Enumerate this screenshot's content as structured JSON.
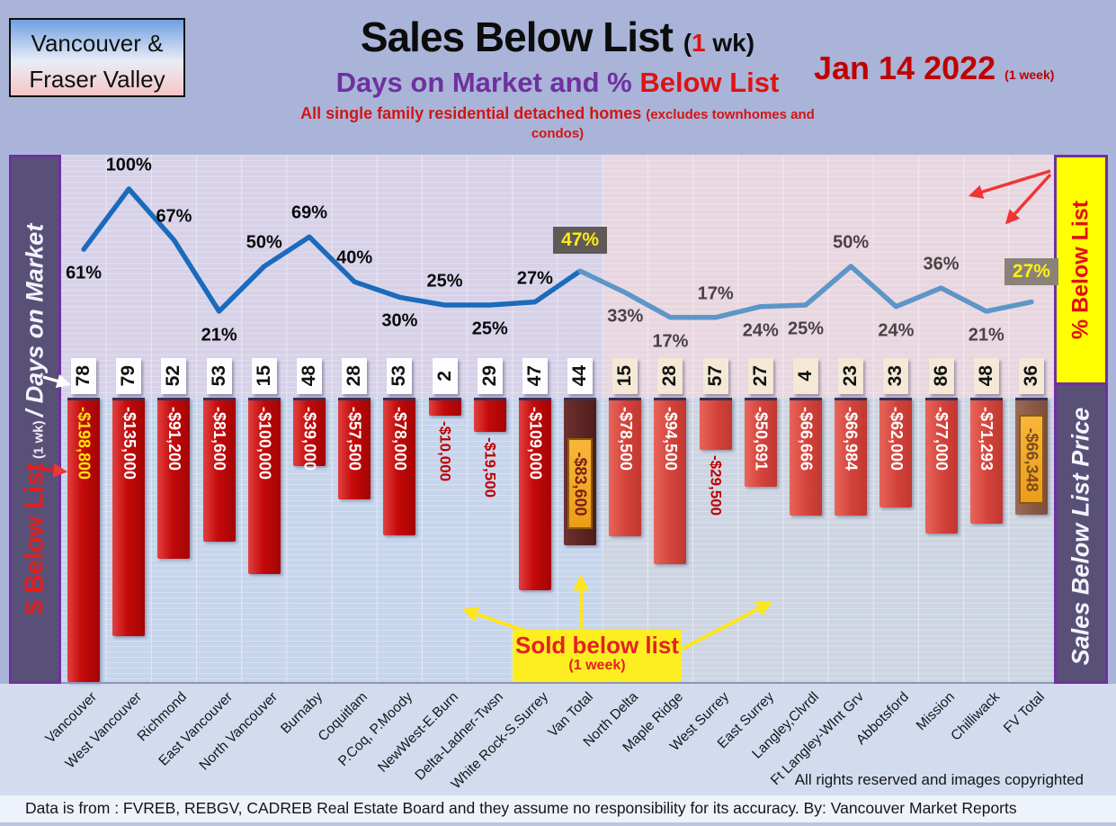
{
  "header": {
    "logo_line1": "Vancouver &",
    "logo_line2": "Fraser Valley",
    "title_black": "Sales Below List ",
    "title_paren_pre": "(",
    "title_paren_num": "1",
    "title_paren_post": " wk)",
    "subtitle_purple": "Days on Market and % ",
    "subtitle_red": "Below List",
    "tagline_main": "All single family residential detached homes ",
    "tagline_paren": "(excludes townhomes and condos)",
    "date_text": "Jan 14  2022 ",
    "date_paren": "(1 week)"
  },
  "sidebars": {
    "left_red": "$ Below List",
    "left_small": " (1 wk) ",
    "left_white": "/ Days on Market",
    "right_yellow_label": "% Below List",
    "right_white": "Sales Below List Price"
  },
  "callout": {
    "line1": "Sold below list",
    "line2": "(1 week)"
  },
  "footer": {
    "rights": "All rights reserved and  images copyrighted",
    "source": "Data is from : FVREB, REBGV, CADREB Real Estate Board and they assume no responsibility for its accuracy. By: Vancouver Market Reports"
  },
  "chart_data": {
    "type": "combo-bar-line",
    "title": "Sales Below List (1 wk)",
    "subtitle": "Days on Market and % Below List",
    "date": "Jan 14 2022 (1 week)",
    "categories": [
      "Vancouver",
      "West Vancouver",
      "Richmond",
      "East Vancouver",
      "North Vancouver",
      "Burnaby",
      "Coquitlam",
      "P.Coq, P.Moody",
      "NewWest-E.Burn",
      "Delta-Ladner-Twsn",
      "White Rock-S.Surrey",
      "Van Total",
      "North Delta",
      "Maple Ridge",
      "West Surrey",
      "East Surrey",
      "Langley,Clvrdl",
      "Ft Langley-WInt Grv",
      "Abbotsford",
      "Mission",
      "Chilliwack",
      "FV Total"
    ],
    "series": [
      {
        "name": "% Below List",
        "type": "line",
        "unit": "%",
        "values": [
          61,
          100,
          67,
          21,
          50,
          69,
          40,
          30,
          25,
          25,
          27,
          47,
          33,
          17,
          17,
          24,
          25,
          50,
          24,
          36,
          21,
          27
        ]
      },
      {
        "name": "Days on Market",
        "type": "label-row",
        "unit": "days",
        "values": [
          78,
          79,
          52,
          53,
          15,
          48,
          28,
          53,
          2,
          29,
          47,
          44,
          15,
          28,
          57,
          27,
          4,
          23,
          33,
          86,
          48,
          36
        ]
      },
      {
        "name": "$ Below List",
        "type": "bar",
        "unit": "$",
        "values": [
          -198800,
          -135000,
          -91200,
          -81600,
          -100000,
          -39000,
          -57500,
          -78000,
          -10000,
          -19500,
          -109000,
          -83600,
          -78500,
          -94500,
          -29500,
          -50691,
          -66666,
          -66984,
          -62000,
          -77000,
          -71293,
          -66348
        ],
        "labels": [
          "-$198,800",
          "-$135,000",
          "-$91,200",
          "-$81,600",
          "-$100,000",
          "-$39,000",
          "-$57,500",
          "-$78,000",
          "-$10,000",
          "-$19,500",
          "-$109,000",
          "-$83,600",
          "-$78,500",
          "-$94,500",
          "-$29,500",
          "-$50,691",
          "-$66,666",
          "-$66,984",
          "-$62,000",
          "-$77,000",
          "-$71,293",
          "-$66,348"
        ]
      }
    ],
    "totals_indices": [
      11,
      21
    ],
    "region_split_index": 12,
    "pct_label_pos": [
      "below",
      "above",
      "above",
      "below",
      "above",
      "above",
      "above",
      "below",
      "above",
      "below",
      "above",
      "boxed",
      "below",
      "below",
      "above",
      "below",
      "below",
      "above",
      "below",
      "above",
      "below",
      "boxed"
    ],
    "outside_label_indices": [
      8,
      9,
      14
    ],
    "grid": "vertical category lines + fine horizontal stripes",
    "legend_position": "none",
    "colors": {
      "bar_left": "#c40a0a",
      "bar_right": "#d2423a",
      "bar_van_total": "#5a2622",
      "bar_fv_total": "#8a5a46",
      "gold_highlight": "#f2a72e",
      "line_left": "#1a6bbb",
      "line_right": "#5d96c8",
      "pct_box_47": "#5f5a55",
      "pct_box_27": "#8b8178",
      "sidebar_purple": "#585077",
      "sidebar_border": "#7030a0",
      "callout_yellow": "#fdee21",
      "accent_red": "#e01212",
      "date_red": "#c00000"
    }
  }
}
